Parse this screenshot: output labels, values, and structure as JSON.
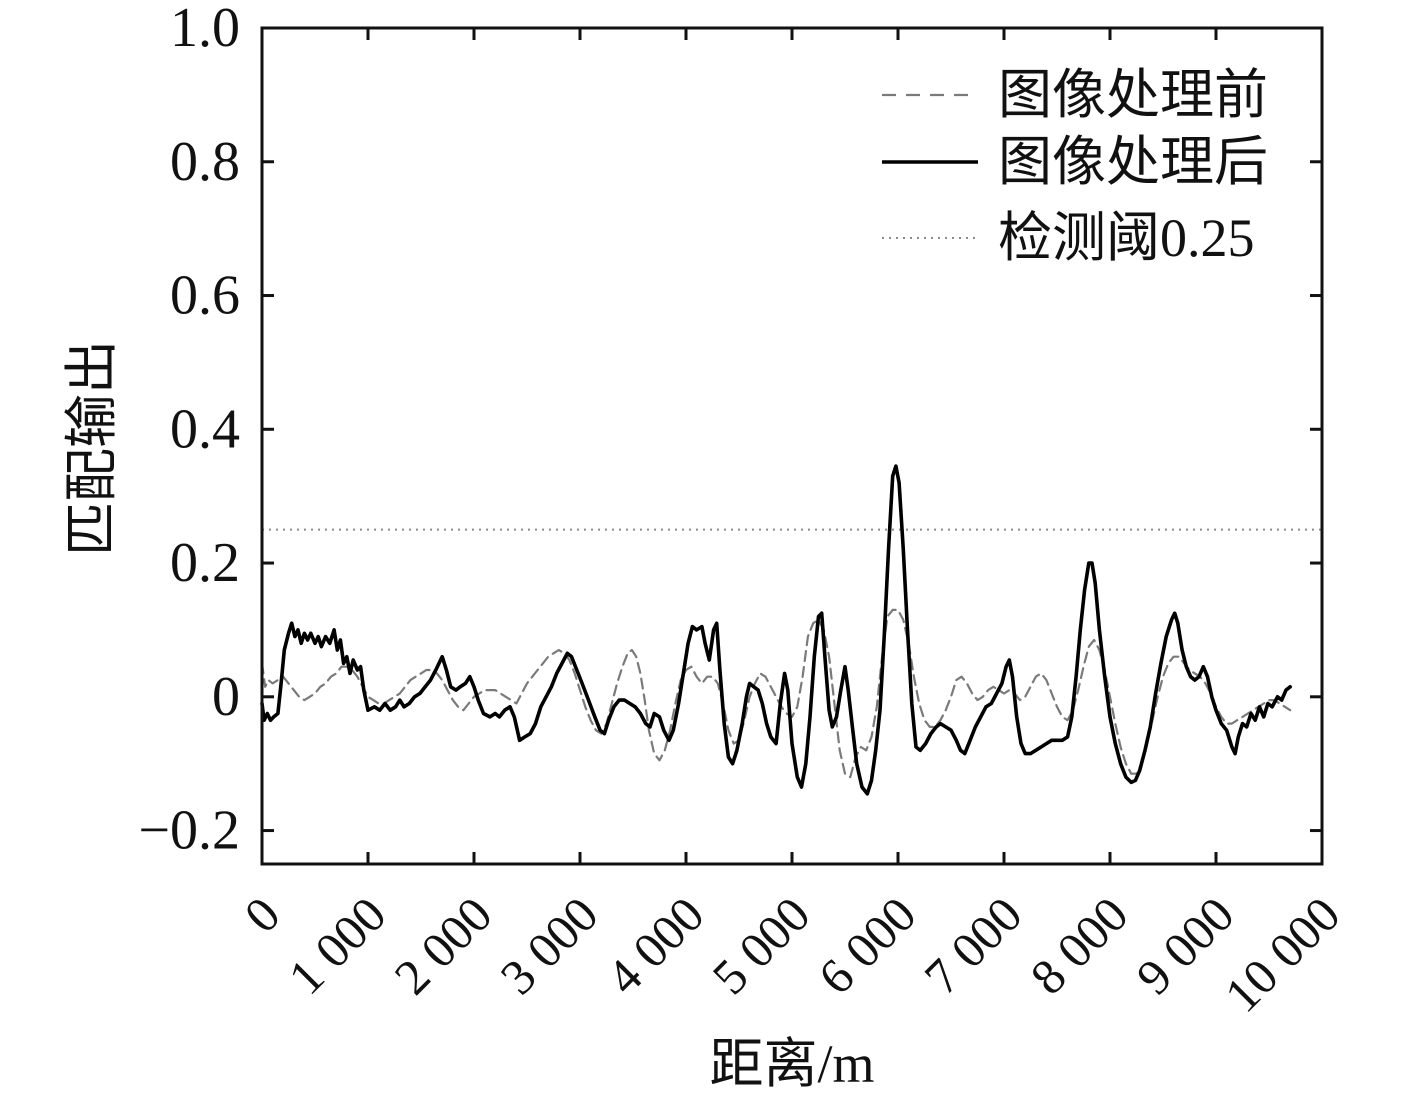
{
  "chart_data": {
    "type": "line",
    "xlabel": "距离/m",
    "ylabel": "匹配输出",
    "xlim": [
      0,
      10000
    ],
    "ylim": [
      -0.25,
      1.0
    ],
    "xticks": [
      0,
      1000,
      2000,
      3000,
      4000,
      5000,
      6000,
      7000,
      8000,
      9000,
      10000
    ],
    "xtick_labels": [
      "0",
      "1 000",
      "2 000",
      "3 000",
      "4 000",
      "5 000",
      "6 000",
      "7 000",
      "8 000",
      "9 000",
      "10 000"
    ],
    "yticks": [
      -0.2,
      0,
      0.2,
      0.4,
      0.6,
      0.8,
      1.0
    ],
    "ytick_labels": [
      "−0.2",
      "0",
      "0.2",
      "0.4",
      "0.6",
      "0.8",
      "1.0"
    ],
    "grid": false,
    "legend_position": "top-right",
    "series": [
      {
        "name": "图像处理前",
        "style": "dashed",
        "color": "#7a7a7a",
        "x": [
          0,
          30,
          60,
          100,
          150,
          200,
          250,
          300,
          350,
          400,
          450,
          500,
          550,
          600,
          650,
          700,
          750,
          800,
          850,
          900,
          950,
          1000,
          1050,
          1100,
          1150,
          1200,
          1250,
          1300,
          1350,
          1400,
          1450,
          1500,
          1550,
          1600,
          1650,
          1700,
          1750,
          1800,
          1850,
          1900,
          1950,
          2000,
          2050,
          2100,
          2150,
          2200,
          2250,
          2300,
          2350,
          2400,
          2450,
          2500,
          2550,
          2600,
          2650,
          2700,
          2750,
          2800,
          2850,
          2900,
          2950,
          3000,
          3050,
          3100,
          3150,
          3200,
          3250,
          3300,
          3350,
          3400,
          3450,
          3490,
          3530,
          3570,
          3610,
          3650,
          3700,
          3750,
          3800,
          3850,
          3900,
          3950,
          4000,
          4050,
          4100,
          4150,
          4200,
          4250,
          4300,
          4350,
          4400,
          4450,
          4500,
          4550,
          4600,
          4650,
          4700,
          4750,
          4800,
          4850,
          4900,
          4950,
          5000,
          5050,
          5100,
          5150,
          5200,
          5250,
          5300,
          5350,
          5400,
          5450,
          5500,
          5550,
          5600,
          5650,
          5700,
          5750,
          5800,
          5850,
          5900,
          5950,
          6000,
          6050,
          6100,
          6150,
          6200,
          6250,
          6300,
          6350,
          6400,
          6450,
          6500,
          6550,
          6600,
          6650,
          6700,
          6750,
          6800,
          6850,
          6900,
          6950,
          7000,
          7050,
          7100,
          7150,
          7200,
          7250,
          7300,
          7350,
          7400,
          7450,
          7500,
          7550,
          7600,
          7650,
          7700,
          7750,
          7800,
          7850,
          7900,
          7950,
          8000,
          8050,
          8100,
          8150,
          8200,
          8250,
          8300,
          8350,
          8400,
          8450,
          8500,
          8550,
          8600,
          8650,
          8700,
          8750,
          8800,
          8850,
          8900,
          8950,
          9000,
          9050,
          9100,
          9150,
          9200,
          9250,
          9300,
          9350,
          9400,
          9450,
          9500,
          9550,
          9600,
          9650,
          9700
        ],
        "y": [
          0.05,
          0.015,
          0.025,
          0.02,
          0.025,
          0.03,
          0.02,
          0.01,
          0.0,
          -0.005,
          0.0,
          0.005,
          0.015,
          0.02,
          0.03,
          0.035,
          0.045,
          0.045,
          0.04,
          0.03,
          0.015,
          0.0,
          -0.005,
          -0.01,
          -0.01,
          -0.005,
          0.0,
          0.005,
          0.015,
          0.025,
          0.03,
          0.035,
          0.04,
          0.04,
          0.035,
          0.025,
          0.01,
          -0.005,
          -0.015,
          -0.02,
          -0.01,
          0.0,
          0.005,
          0.01,
          0.01,
          0.01,
          0.005,
          0.0,
          -0.005,
          -0.01,
          0.005,
          0.02,
          0.03,
          0.04,
          0.05,
          0.06,
          0.065,
          0.07,
          0.065,
          0.055,
          0.035,
          0.01,
          -0.015,
          -0.035,
          -0.05,
          -0.055,
          -0.04,
          -0.01,
          0.02,
          0.045,
          0.065,
          0.07,
          0.06,
          0.035,
          -0.005,
          -0.05,
          -0.085,
          -0.095,
          -0.08,
          -0.05,
          -0.01,
          0.025,
          0.04,
          0.045,
          0.03,
          0.02,
          0.03,
          0.03,
          0.02,
          -0.01,
          -0.05,
          -0.07,
          -0.065,
          -0.035,
          0.0,
          0.02,
          0.035,
          0.03,
          0.015,
          0.0,
          -0.015,
          -0.025,
          -0.03,
          -0.015,
          0.03,
          0.09,
          0.11,
          0.115,
          0.1,
          0.06,
          -0.01,
          -0.08,
          -0.115,
          -0.12,
          -0.09,
          -0.075,
          -0.08,
          -0.06,
          -0.015,
          0.06,
          0.12,
          0.13,
          0.13,
          0.115,
          0.08,
          0.03,
          -0.01,
          -0.035,
          -0.045,
          -0.045,
          -0.035,
          -0.02,
          0.0,
          0.025,
          0.03,
          0.02,
          0.005,
          -0.005,
          0.0,
          0.01,
          0.015,
          0.01,
          0.005,
          0.01,
          0.005,
          -0.005,
          0.0,
          0.015,
          0.03,
          0.035,
          0.025,
          0.005,
          -0.015,
          -0.03,
          -0.035,
          -0.02,
          0.01,
          0.045,
          0.075,
          0.085,
          0.07,
          0.04,
          0.0,
          -0.04,
          -0.075,
          -0.1,
          -0.115,
          -0.115,
          -0.1,
          -0.07,
          -0.035,
          0.0,
          0.03,
          0.05,
          0.06,
          0.06,
          0.05,
          0.04,
          0.035,
          0.03,
          0.02,
          0.005,
          -0.015,
          -0.03,
          -0.04,
          -0.04,
          -0.035,
          -0.03,
          -0.025,
          -0.02,
          -0.015,
          -0.01,
          -0.005,
          -0.005,
          -0.01,
          -0.015,
          -0.02
        ]
      },
      {
        "name": "图像处理后",
        "style": "solid",
        "color": "#000000",
        "x": [
          0,
          20,
          50,
          80,
          110,
          150,
          180,
          210,
          250,
          280,
          310,
          340,
          370,
          400,
          430,
          460,
          500,
          530,
          560,
          600,
          640,
          680,
          710,
          740,
          770,
          800,
          830,
          860,
          900,
          930,
          960,
          1000,
          1060,
          1110,
          1160,
          1210,
          1260,
          1300,
          1340,
          1390,
          1440,
          1490,
          1540,
          1590,
          1640,
          1700,
          1740,
          1780,
          1830,
          1870,
          1920,
          1960,
          2000,
          2040,
          2090,
          2150,
          2200,
          2240,
          2290,
          2340,
          2380,
          2430,
          2480,
          2530,
          2580,
          2630,
          2680,
          2730,
          2780,
          2830,
          2880,
          2920,
          2970,
          3020,
          3080,
          3140,
          3190,
          3230,
          3270,
          3320,
          3370,
          3420,
          3470,
          3520,
          3570,
          3620,
          3660,
          3700,
          3750,
          3790,
          3840,
          3880,
          3930,
          3980,
          4020,
          4060,
          4100,
          4150,
          4180,
          4220,
          4260,
          4290,
          4320,
          4360,
          4400,
          4440,
          4480,
          4530,
          4570,
          4600,
          4640,
          4680,
          4720,
          4760,
          4800,
          4850,
          4890,
          4930,
          4960,
          5000,
          5050,
          5090,
          5130,
          5170,
          5210,
          5250,
          5280,
          5310,
          5350,
          5380,
          5420,
          5460,
          5500,
          5530,
          5570,
          5610,
          5660,
          5710,
          5750,
          5790,
          5830,
          5870,
          5910,
          5950,
          5980,
          6010,
          6050,
          6090,
          6130,
          6170,
          6210,
          6260,
          6310,
          6360,
          6400,
          6450,
          6500,
          6550,
          6590,
          6630,
          6680,
          6730,
          6780,
          6830,
          6880,
          6930,
          6980,
          7020,
          7050,
          7080,
          7120,
          7160,
          7200,
          7250,
          7300,
          7350,
          7400,
          7450,
          7500,
          7550,
          7600,
          7640,
          7680,
          7720,
          7760,
          7800,
          7830,
          7860,
          7900,
          7950,
          8000,
          8050,
          8100,
          8150,
          8200,
          8240,
          8280,
          8330,
          8380,
          8430,
          8480,
          8530,
          8580,
          8610,
          8640,
          8680,
          8720,
          8760,
          8800,
          8840,
          8880,
          8920,
          8960,
          9000,
          9050,
          9100,
          9150,
          9180,
          9210,
          9250,
          9290,
          9330,
          9370,
          9410,
          9450,
          9490,
          9530,
          9580,
          9620,
          9660,
          9700
        ],
        "y": [
          -0.01,
          -0.035,
          -0.025,
          -0.035,
          -0.03,
          -0.025,
          0.02,
          0.07,
          0.095,
          0.11,
          0.09,
          0.1,
          0.08,
          0.095,
          0.085,
          0.095,
          0.08,
          0.09,
          0.075,
          0.09,
          0.08,
          0.1,
          0.07,
          0.085,
          0.05,
          0.06,
          0.035,
          0.055,
          0.04,
          0.045,
          0.01,
          -0.02,
          -0.015,
          -0.02,
          -0.01,
          -0.02,
          -0.015,
          -0.005,
          -0.015,
          -0.01,
          0.0,
          0.005,
          0.015,
          0.025,
          0.04,
          0.06,
          0.04,
          0.015,
          0.01,
          0.015,
          0.02,
          0.03,
          0.015,
          -0.005,
          -0.025,
          -0.03,
          -0.025,
          -0.03,
          -0.02,
          -0.015,
          -0.03,
          -0.065,
          -0.06,
          -0.055,
          -0.04,
          -0.015,
          0.0,
          0.015,
          0.035,
          0.05,
          0.065,
          0.06,
          0.04,
          0.02,
          -0.005,
          -0.03,
          -0.05,
          -0.055,
          -0.035,
          -0.015,
          -0.005,
          -0.005,
          -0.01,
          -0.015,
          -0.025,
          -0.04,
          -0.045,
          -0.025,
          -0.03,
          -0.05,
          -0.065,
          -0.05,
          -0.01,
          0.04,
          0.08,
          0.105,
          0.1,
          0.105,
          0.08,
          0.055,
          0.1,
          0.11,
          0.04,
          -0.04,
          -0.09,
          -0.1,
          -0.08,
          -0.04,
          0.0,
          0.02,
          0.015,
          0.01,
          -0.01,
          -0.04,
          -0.06,
          -0.07,
          -0.01,
          0.035,
          0.01,
          -0.07,
          -0.12,
          -0.135,
          -0.1,
          -0.03,
          0.06,
          0.12,
          0.125,
          0.06,
          -0.02,
          -0.045,
          -0.03,
          0.01,
          0.045,
          0.01,
          -0.045,
          -0.1,
          -0.135,
          -0.145,
          -0.125,
          -0.08,
          -0.02,
          0.09,
          0.22,
          0.33,
          0.345,
          0.32,
          0.22,
          0.1,
          -0.01,
          -0.075,
          -0.08,
          -0.07,
          -0.055,
          -0.045,
          -0.04,
          -0.045,
          -0.05,
          -0.065,
          -0.08,
          -0.085,
          -0.065,
          -0.045,
          -0.03,
          -0.015,
          -0.01,
          0.005,
          0.02,
          0.045,
          0.055,
          0.03,
          -0.03,
          -0.07,
          -0.085,
          -0.085,
          -0.08,
          -0.075,
          -0.07,
          -0.065,
          -0.065,
          -0.065,
          -0.06,
          -0.03,
          0.03,
          0.1,
          0.16,
          0.2,
          0.2,
          0.17,
          0.1,
          0.03,
          -0.03,
          -0.07,
          -0.1,
          -0.12,
          -0.128,
          -0.125,
          -0.11,
          -0.08,
          -0.045,
          0.005,
          0.05,
          0.09,
          0.115,
          0.125,
          0.11,
          0.07,
          0.045,
          0.03,
          0.025,
          0.03,
          0.045,
          0.03,
          0.0,
          -0.02,
          -0.04,
          -0.05,
          -0.075,
          -0.085,
          -0.06,
          -0.04,
          -0.045,
          -0.025,
          -0.035,
          -0.015,
          -0.03,
          -0.01,
          -0.015,
          0.0,
          -0.005,
          0.01,
          0.015
        ]
      }
    ],
    "threshold": {
      "name": "检测阈0.25",
      "value": 0.25,
      "style": "dotted",
      "color": "#8a8a8a"
    }
  }
}
